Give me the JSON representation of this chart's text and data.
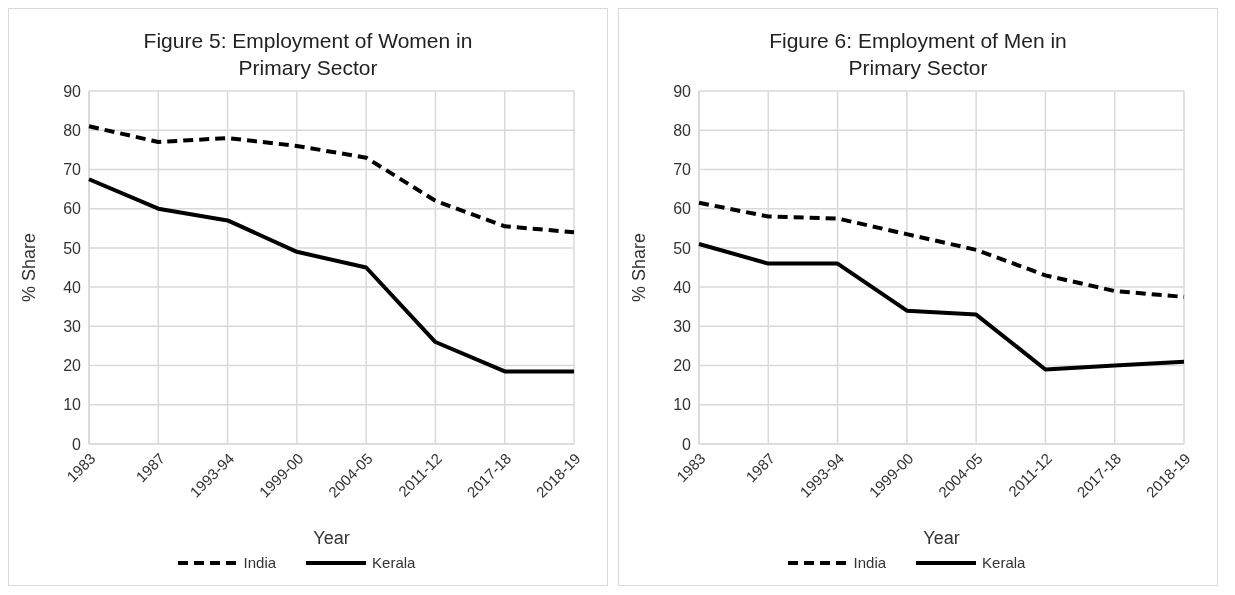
{
  "chart_data": [
    {
      "type": "line",
      "title": "Figure 5: Employment of Women in Primary Sector",
      "xlabel": "Year",
      "ylabel": "% Share",
      "categories": [
        "1983",
        "1987",
        "1993-94",
        "1999-00",
        "2004-05",
        "2011-12",
        "2017-18",
        "2018-19"
      ],
      "ylim": [
        0,
        90
      ],
      "yticks": [
        0,
        10,
        20,
        30,
        40,
        50,
        60,
        70,
        80,
        90
      ],
      "grid": true,
      "legend": "bottom",
      "marker": "none",
      "series": [
        {
          "name": "India",
          "color": "#000000",
          "line_style": "dashed",
          "values": [
            81,
            77,
            78,
            76,
            73,
            62,
            55.5,
            54
          ]
        },
        {
          "name": "Kerala",
          "color": "#000000",
          "line_style": "solid",
          "values": [
            67.5,
            60,
            57,
            49,
            45,
            26,
            18.5,
            18.5
          ]
        }
      ]
    },
    {
      "type": "line",
      "title": "Figure 6: Employment of Men in Primary Sector",
      "xlabel": "Year",
      "ylabel": "% Share",
      "categories": [
        "1983",
        "1987",
        "1993-94",
        "1999-00",
        "2004-05",
        "2011-12",
        "2017-18",
        "2018-19"
      ],
      "ylim": [
        0,
        90
      ],
      "yticks": [
        0,
        10,
        20,
        30,
        40,
        50,
        60,
        70,
        80,
        90
      ],
      "grid": true,
      "legend": "bottom",
      "marker": "none",
      "series": [
        {
          "name": "India",
          "color": "#000000",
          "line_style": "dashed",
          "values": [
            61.5,
            58,
            57.5,
            53.5,
            49.5,
            43,
            39,
            37.5
          ]
        },
        {
          "name": "Kerala",
          "color": "#000000",
          "line_style": "solid",
          "values": [
            51,
            46,
            46,
            34,
            33,
            19,
            20,
            21
          ]
        }
      ]
    }
  ]
}
